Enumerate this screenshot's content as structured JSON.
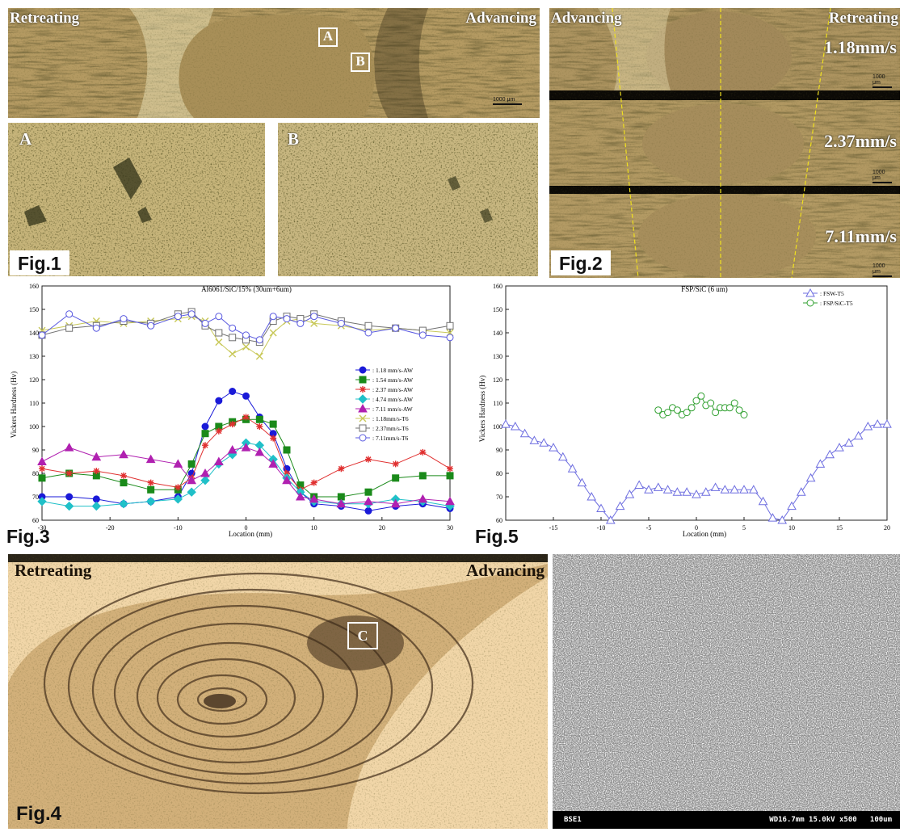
{
  "fig1": {
    "overview": {
      "label_left": "Retreating",
      "label_right": "Advancing",
      "box_a": "A",
      "box_b": "B",
      "scale": "1000 μm"
    },
    "panel_a": {
      "label": "A"
    },
    "panel_b": {
      "label": "B"
    },
    "tag": "Fig.1"
  },
  "fig2": {
    "label_left": "Advancing",
    "label_right": "Retreating",
    "speeds": [
      "1.18mm/s",
      "2.37mm/s",
      "7.11mm/s"
    ],
    "scales": [
      "1000 μm",
      "1000 μm",
      "1000 μm"
    ],
    "tag": "Fig.2"
  },
  "fig3": {
    "tag": "Fig.3",
    "colors": {
      "s118aw": "#1a1ad8",
      "s154aw": "#1a8a1a",
      "s237aw": "#e03030",
      "s474aw": "#20c0c8",
      "s711aw": "#b020b0",
      "t118": "#c8c858",
      "t237": "#707070",
      "t711": "#5a5ae0"
    },
    "chart_data": {
      "type": "line",
      "title": "Al6061/SiC/15% (30um+6um)",
      "xlabel": "Location (mm)",
      "ylabel": "Vickers Hardness (Hv)",
      "xlim": [
        -30,
        30
      ],
      "ylim": [
        60,
        160
      ],
      "xticks": [
        -30,
        -20,
        -10,
        0,
        10,
        20,
        30
      ],
      "yticks": [
        60,
        70,
        80,
        90,
        100,
        110,
        120,
        130,
        140,
        150,
        160
      ],
      "legend_position": "right",
      "series": [
        {
          "name": ": 1.18 mm/s-AW",
          "color": "#1a1ad8",
          "marker": "circle",
          "filled": true,
          "x": [
            -30,
            -26,
            -22,
            -18,
            -14,
            -10,
            -8,
            -6,
            -4,
            -2,
            0,
            2,
            4,
            6,
            8,
            10,
            14,
            18,
            22,
            26,
            30
          ],
          "y": [
            70,
            70,
            69,
            67,
            68,
            70,
            80,
            100,
            111,
            115,
            113,
            104,
            97,
            82,
            72,
            67,
            66,
            64,
            66,
            67,
            65
          ]
        },
        {
          "name": ": 1.54 mm/s-AW",
          "color": "#1a8a1a",
          "marker": "square",
          "filled": true,
          "x": [
            -30,
            -26,
            -22,
            -18,
            -14,
            -10,
            -8,
            -6,
            -4,
            -2,
            0,
            2,
            4,
            6,
            8,
            10,
            14,
            18,
            22,
            26,
            30
          ],
          "y": [
            78,
            80,
            79,
            76,
            73,
            73,
            84,
            97,
            100,
            102,
            103,
            103,
            101,
            90,
            75,
            70,
            70,
            72,
            78,
            79,
            79
          ]
        },
        {
          "name": ": 2.37 mm/s-AW",
          "color": "#e03030",
          "marker": "star",
          "filled": true,
          "x": [
            -30,
            -26,
            -22,
            -18,
            -14,
            -10,
            -8,
            -6,
            -4,
            -2,
            0,
            2,
            4,
            6,
            8,
            10,
            14,
            18,
            22,
            26,
            30
          ],
          "y": [
            82,
            80,
            81,
            79,
            76,
            74,
            78,
            92,
            98,
            101,
            104,
            100,
            95,
            80,
            73,
            76,
            82,
            86,
            84,
            89,
            82
          ]
        },
        {
          "name": ": 4.74 mm/s-AW",
          "color": "#20c0c8",
          "marker": "diamond",
          "filled": true,
          "x": [
            -30,
            -26,
            -22,
            -18,
            -14,
            -10,
            -8,
            -6,
            -4,
            -2,
            0,
            2,
            4,
            6,
            8,
            10,
            14,
            18,
            22,
            26,
            30
          ],
          "y": [
            68,
            66,
            66,
            67,
            68,
            69,
            72,
            77,
            84,
            88,
            93,
            92,
            86,
            78,
            72,
            68,
            67,
            67,
            69,
            68,
            66
          ]
        },
        {
          "name": ": 7.11 mm/s-AW",
          "color": "#b020b0",
          "marker": "triangle",
          "filled": true,
          "x": [
            -30,
            -26,
            -22,
            -18,
            -14,
            -10,
            -8,
            -6,
            -4,
            -2,
            0,
            2,
            4,
            6,
            8,
            10,
            14,
            18,
            22,
            26,
            30
          ],
          "y": [
            85,
            91,
            87,
            88,
            86,
            84,
            77,
            80,
            85,
            90,
            91,
            89,
            84,
            77,
            70,
            69,
            67,
            68,
            67,
            69,
            68
          ]
        },
        {
          "name": ": 1.18mm/s-T6",
          "color": "#c8c858",
          "marker": "x",
          "filled": false,
          "x": [
            -30,
            -26,
            -22,
            -18,
            -14,
            -10,
            -8,
            -6,
            -4,
            -2,
            0,
            2,
            4,
            6,
            8,
            10,
            14,
            18,
            22,
            26,
            30
          ],
          "y": [
            141,
            143,
            145,
            144,
            145,
            146,
            147,
            145,
            136,
            131,
            134,
            130,
            140,
            145,
            146,
            144,
            143,
            141,
            142,
            141,
            140
          ]
        },
        {
          "name": ": 2.37mm/s-T6",
          "color": "#707070",
          "marker": "square",
          "filled": false,
          "x": [
            -30,
            -26,
            -22,
            -18,
            -14,
            -10,
            -8,
            -6,
            -4,
            -2,
            0,
            2,
            4,
            6,
            8,
            10,
            14,
            18,
            22,
            26,
            30
          ],
          "y": [
            139,
            142,
            143,
            145,
            144,
            148,
            149,
            143,
            140,
            138,
            137,
            136,
            145,
            147,
            146,
            148,
            145,
            143,
            142,
            141,
            143
          ]
        },
        {
          "name": ": 7.11mm/s-T6",
          "color": "#5a5ae0",
          "marker": "circle",
          "filled": false,
          "x": [
            -30,
            -26,
            -22,
            -18,
            -14,
            -10,
            -8,
            -6,
            -4,
            -2,
            0,
            2,
            4,
            6,
            8,
            10,
            14,
            18,
            22,
            26,
            30
          ],
          "y": [
            139,
            148,
            142,
            146,
            143,
            147,
            148,
            144,
            147,
            142,
            139,
            137,
            147,
            146,
            144,
            147,
            144,
            140,
            142,
            139,
            138
          ]
        }
      ]
    }
  },
  "fig4": {
    "label_left": "Retreating",
    "label_right": "Advancing",
    "box_c": "C",
    "tag": "Fig.4"
  },
  "fig5": {
    "tag": "Fig.5",
    "chart_data": {
      "type": "line",
      "title": "FSP/SiC (6 um)",
      "xlabel": "Location (mm)",
      "ylabel": "Vickers Hardness (Hv)",
      "xlim": [
        -20,
        20
      ],
      "ylim": [
        60,
        160
      ],
      "xticks": [
        -15,
        -10,
        -5,
        0,
        5,
        10,
        15,
        20
      ],
      "yticks": [
        60,
        70,
        80,
        90,
        100,
        110,
        120,
        130,
        140,
        150,
        160
      ],
      "legend_position": "top-right",
      "series": [
        {
          "name": ": FSW-T5",
          "color": "#6e6ee0",
          "marker": "triangle",
          "filled": false,
          "x": [
            -20,
            -19,
            -18,
            -17,
            -16,
            -15,
            -14,
            -13,
            -12,
            -11,
            -10,
            -9,
            -8,
            -7,
            -6,
            -5,
            -4,
            -3,
            -2,
            -1,
            0,
            1,
            2,
            3,
            4,
            5,
            6,
            7,
            8,
            9,
            10,
            11,
            12,
            13,
            14,
            15,
            16,
            17,
            18,
            19,
            20
          ],
          "y": [
            101,
            100,
            97,
            94,
            93,
            91,
            87,
            82,
            76,
            70,
            65,
            60,
            66,
            71,
            75,
            73,
            74,
            73,
            72,
            72,
            71,
            72,
            74,
            73,
            73,
            73,
            73,
            68,
            61,
            60,
            66,
            72,
            78,
            84,
            88,
            91,
            93,
            96,
            100,
            101,
            101
          ]
        },
        {
          "name": ": FSP/SiC-T5",
          "color": "#30a030",
          "marker": "circle",
          "filled": false,
          "x": [
            -4,
            -3.5,
            -3,
            -2.5,
            -2,
            -1.5,
            -1,
            -0.5,
            0,
            0.5,
            1,
            1.5,
            2,
            2.5,
            3,
            3.5,
            4,
            4.5,
            5
          ],
          "y": [
            107,
            105,
            106,
            108,
            107,
            105,
            106,
            108,
            111,
            113,
            109,
            110,
            106,
            108,
            108,
            108,
            110,
            107,
            105
          ]
        }
      ]
    }
  },
  "sem": {
    "footer_left": "BSE1",
    "footer_right": "WD16.7mm 15.0kV x500   100um"
  }
}
